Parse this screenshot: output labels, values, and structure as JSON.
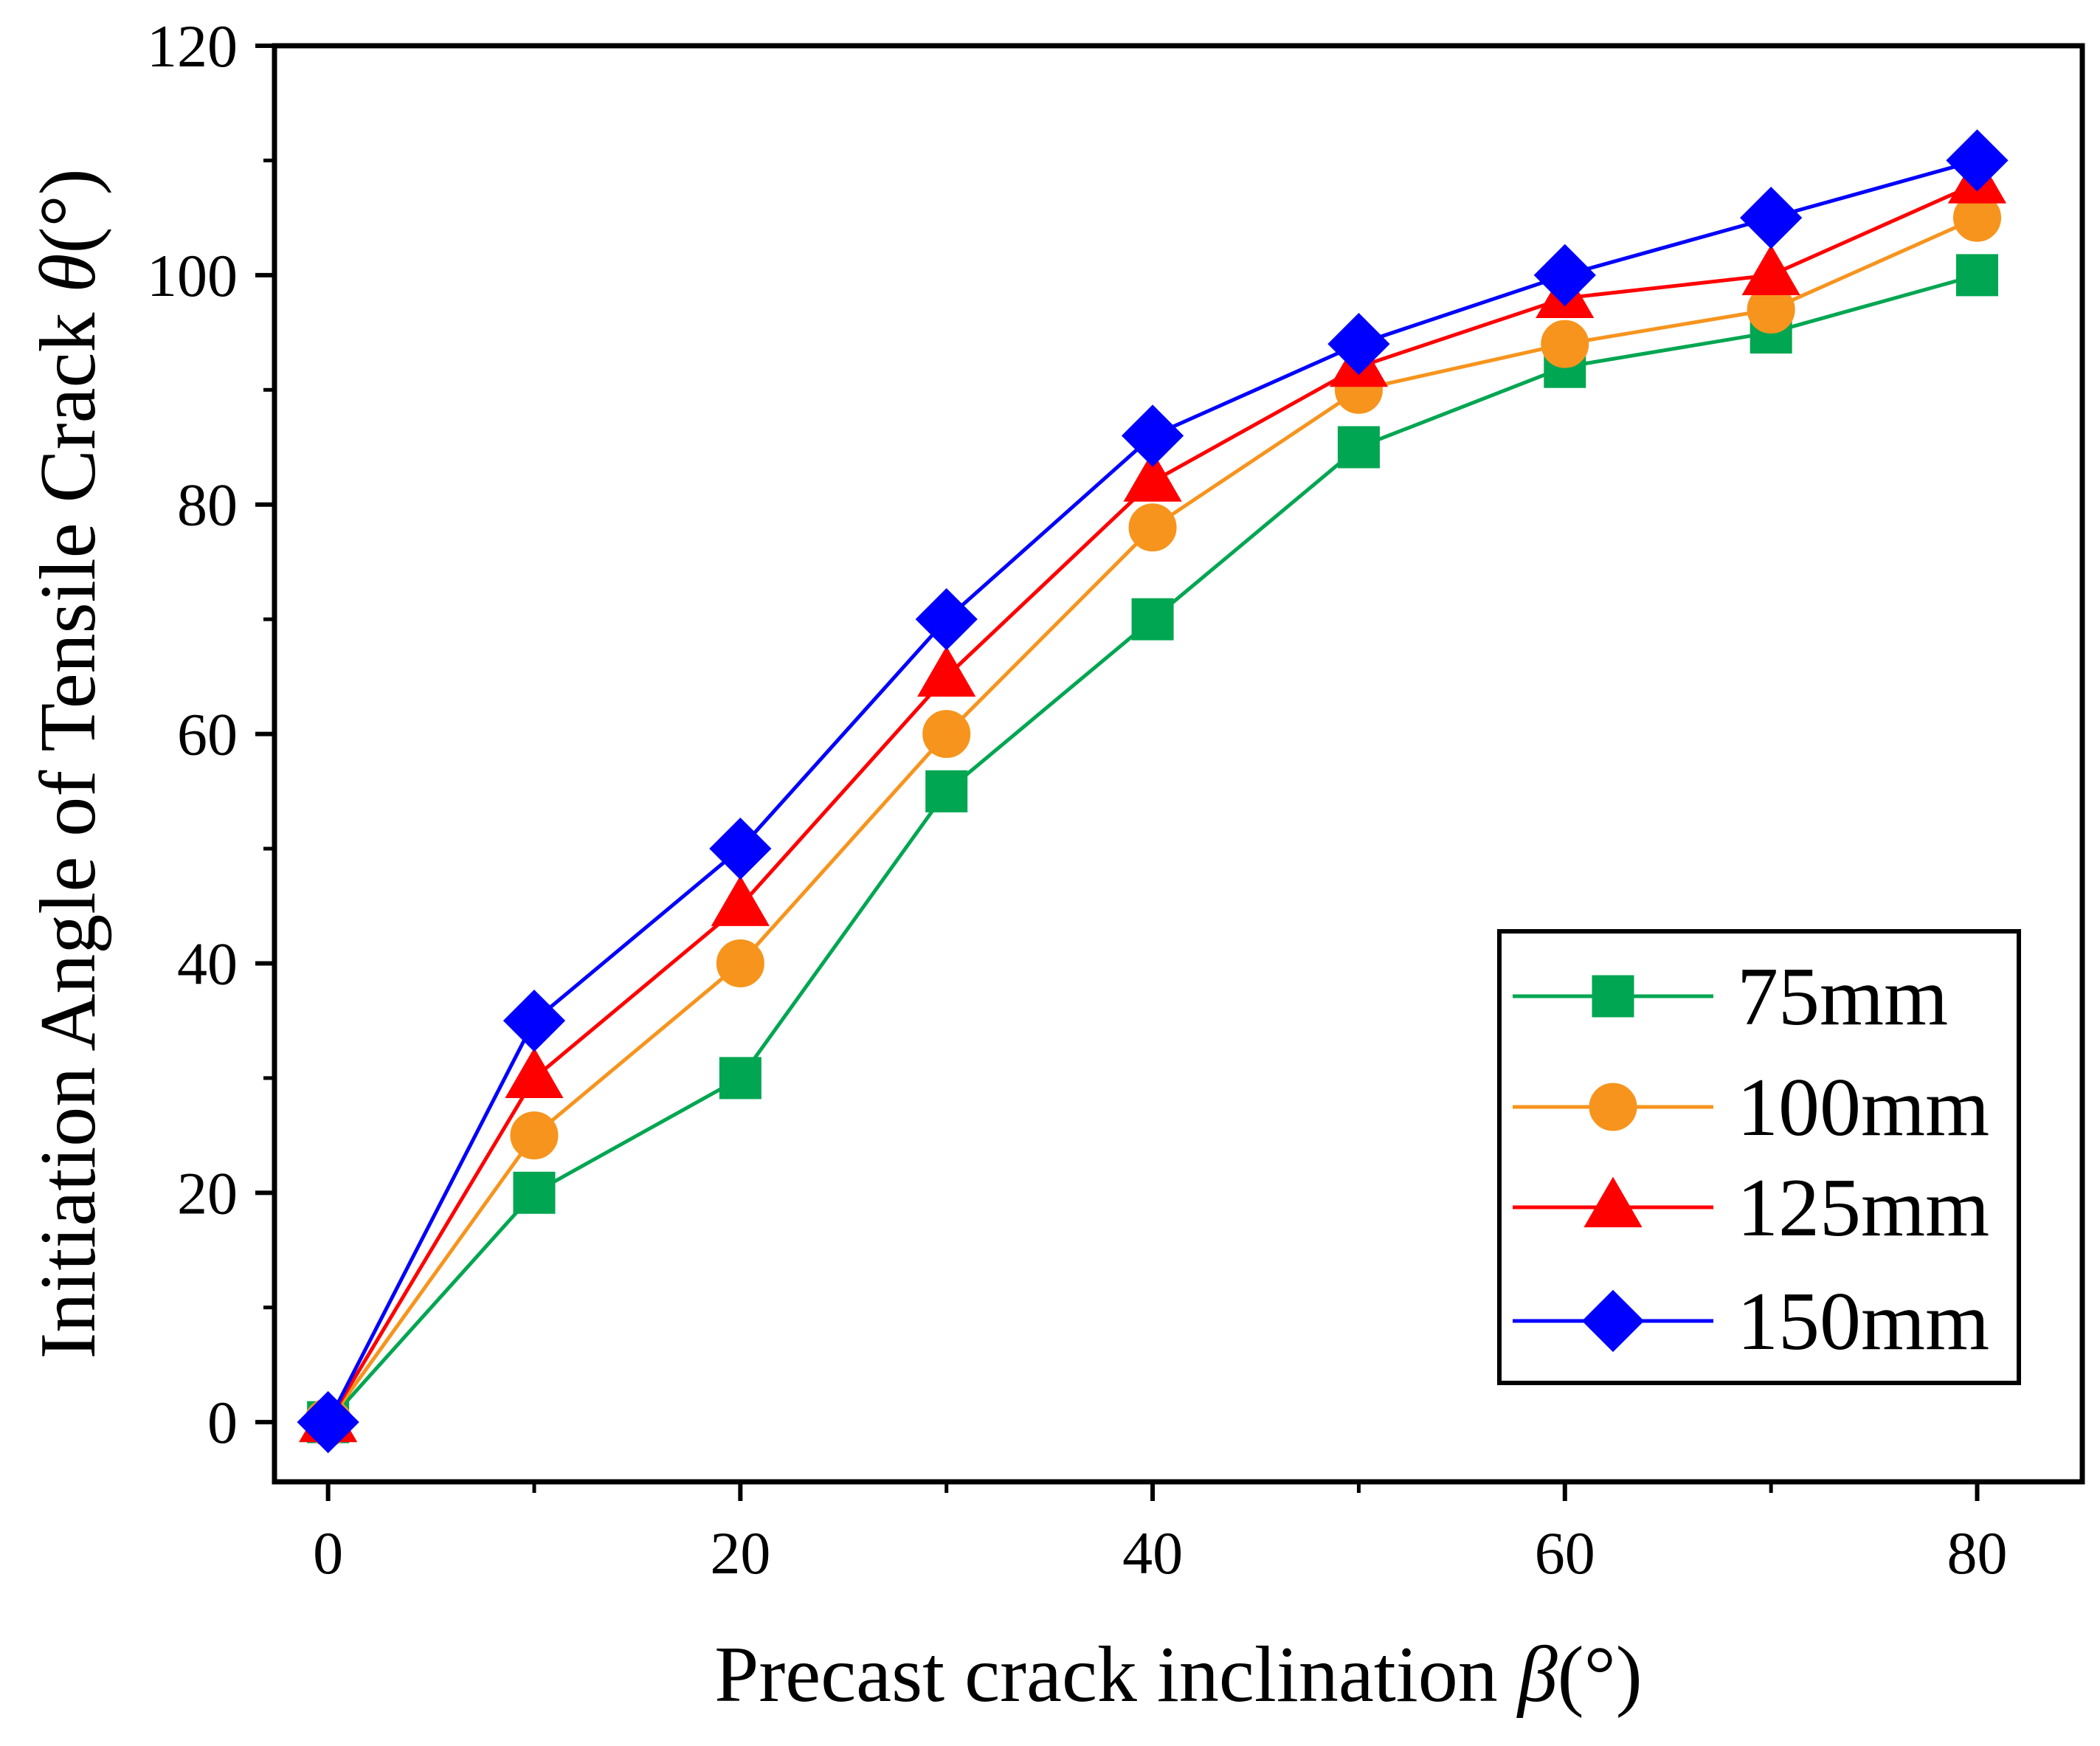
{
  "chart_data": {
    "type": "line",
    "x": [
      0,
      10,
      20,
      30,
      40,
      50,
      60,
      70,
      80
    ],
    "series": [
      {
        "name": "75mm",
        "color": "#00A651",
        "marker": "square",
        "values": [
          0,
          20,
          30,
          55,
          70,
          85,
          92,
          95,
          100
        ]
      },
      {
        "name": "100mm",
        "color": "#F7941D",
        "marker": "circle",
        "values": [
          0,
          25,
          40,
          60,
          78,
          90,
          94,
          97,
          105
        ]
      },
      {
        "name": "125mm",
        "color": "#FF0000",
        "marker": "triangle",
        "values": [
          0,
          30,
          45,
          65,
          82,
          92,
          98,
          100,
          108
        ]
      },
      {
        "name": "150mm",
        "color": "#0000FF",
        "marker": "diamond",
        "values": [
          0,
          35,
          50,
          70,
          86,
          94,
          100,
          105,
          110
        ]
      }
    ],
    "xlabel": {
      "main": "Precast crack inclination ",
      "symbol": "β",
      "unit": "(°)"
    },
    "ylabel": {
      "main": "Initiation Angle of Tensile Crack ",
      "symbol": "θ",
      "unit": "(°)"
    },
    "xlim": [
      -2.6,
      85.1
    ],
    "ylim": [
      -5.2,
      120
    ],
    "xticks": [
      0,
      20,
      40,
      60,
      80
    ],
    "xticks_minor": [
      10,
      30,
      50,
      70
    ],
    "yticks": [
      0,
      20,
      40,
      60,
      80,
      100,
      120
    ],
    "yticks_minor": [
      10,
      30,
      50,
      70,
      90,
      110
    ],
    "grid": false,
    "legend_position": "lower-right"
  }
}
